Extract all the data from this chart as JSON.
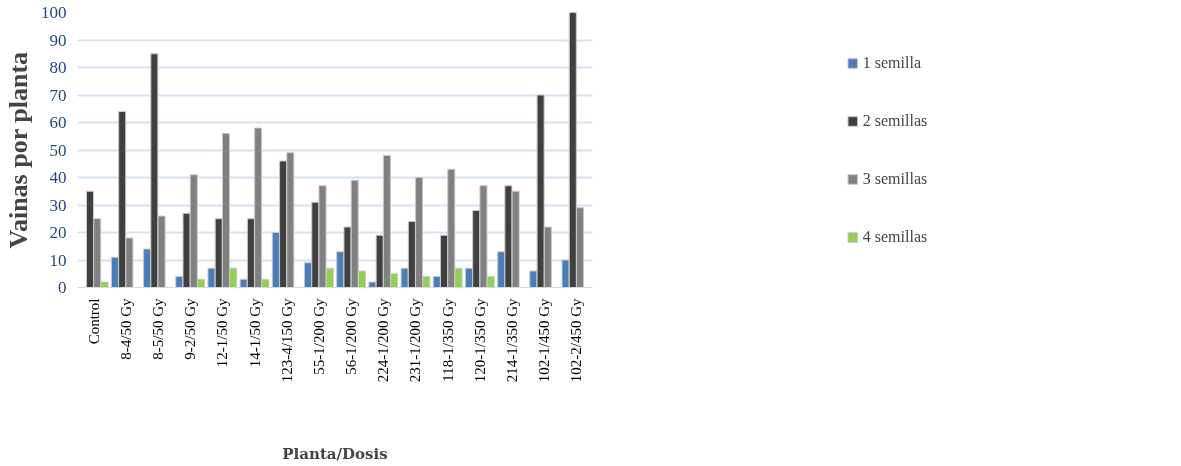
{
  "chart_data": {
    "type": "bar",
    "xlabel": "Planta/Dosis",
    "ylabel": "Vainas por planta",
    "categories": [
      "Control",
      "8-4/50 Gy",
      "8-5/50 Gy",
      "9-2/50 Gy",
      "12-1/50 Gy",
      "14-1/50 Gy",
      "123-4/150 Gy",
      "55-1/200 Gy",
      "56-1/200 Gy",
      "224-1/200 Gy",
      "231-1/200 Gy",
      "118-1/350 Gy",
      "120-1/350 Gy",
      "214-1/350 Gy",
      "102-1/450 Gy",
      "102-2/450 Gy"
    ],
    "series": [
      {
        "name": "1 semilla",
        "color": "#4a7ebb",
        "values": [
          null,
          11,
          14,
          4,
          7,
          3,
          20,
          9,
          13,
          2,
          7,
          4,
          7,
          13,
          6,
          10
        ]
      },
      {
        "name": "2 semillas",
        "color": "#404040",
        "values": [
          35,
          64,
          85,
          27,
          25,
          25,
          46,
          31,
          22,
          19,
          24,
          19,
          28,
          37,
          70,
          100
        ]
      },
      {
        "name": "3 semillas",
        "color": "#808080",
        "values": [
          25,
          18,
          26,
          41,
          56,
          58,
          49,
          37,
          39,
          48,
          40,
          43,
          37,
          35,
          22,
          29
        ]
      },
      {
        "name": "4 semillas",
        "color": "#92d050",
        "values": [
          2,
          null,
          null,
          3,
          7,
          3,
          null,
          7,
          6,
          5,
          4,
          7,
          4,
          null,
          null,
          null
        ]
      }
    ],
    "ylim": [
      0,
      100
    ],
    "yticks": [
      0,
      10,
      20,
      30,
      40,
      50,
      60,
      70,
      80,
      90,
      100
    ],
    "grid": "y",
    "legend": "right"
  }
}
